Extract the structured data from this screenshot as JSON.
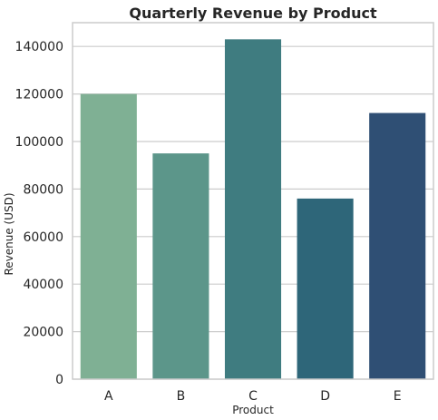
{
  "chart_data": {
    "type": "bar",
    "title": "Quarterly Revenue by Product",
    "xlabel": "Product",
    "ylabel": "Revenue (USD)",
    "categories": [
      "A",
      "B",
      "C",
      "D",
      "E"
    ],
    "values": [
      120000,
      95000,
      143000,
      76000,
      112000
    ],
    "colors": [
      "#7fb094",
      "#5c968a",
      "#3f7c80",
      "#2e6679",
      "#2f4f74"
    ],
    "ylim": [
      0,
      150000
    ],
    "yticks": [
      0,
      20000,
      40000,
      60000,
      80000,
      100000,
      120000,
      140000
    ],
    "grid": "horizontal"
  }
}
